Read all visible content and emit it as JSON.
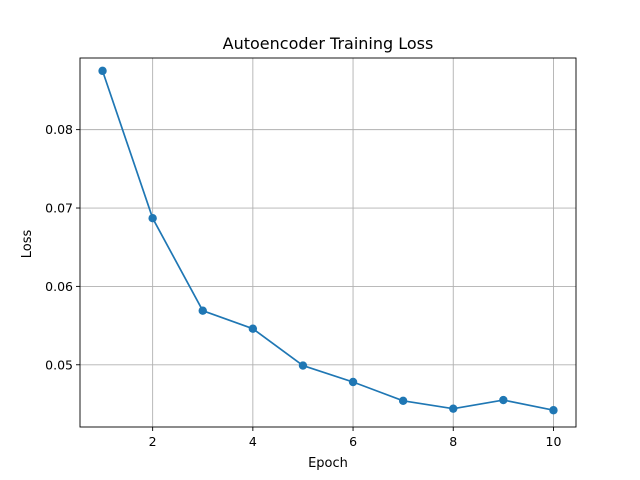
{
  "chart_data": {
    "type": "line",
    "title": "Autoencoder Training Loss",
    "xlabel": "Epoch",
    "ylabel": "Loss",
    "x": [
      1,
      2,
      3,
      4,
      5,
      6,
      7,
      8,
      9,
      10
    ],
    "series": [
      {
        "values": [
          0.0875,
          0.0687,
          0.0569,
          0.0546,
          0.0499,
          0.0478,
          0.0454,
          0.0444,
          0.0455,
          0.0442
        ],
        "color": "#1f77b4",
        "marker": "circle"
      }
    ],
    "xlim": [
      0.55,
      10.45
    ],
    "ylim": [
      0.04206,
      0.08914
    ],
    "xticks": [
      2,
      4,
      6,
      8,
      10
    ],
    "xtick_labels": [
      "2",
      "4",
      "6",
      "8",
      "10"
    ],
    "yticks": [
      0.05,
      0.06,
      0.07,
      0.08
    ],
    "ytick_labels": [
      "0.05",
      "0.06",
      "0.07",
      "0.08"
    ],
    "grid": true,
    "colors": {
      "line": "#1f77b4",
      "grid": "#b0b0b0",
      "frame": "#000000",
      "background": "#ffffff"
    }
  }
}
